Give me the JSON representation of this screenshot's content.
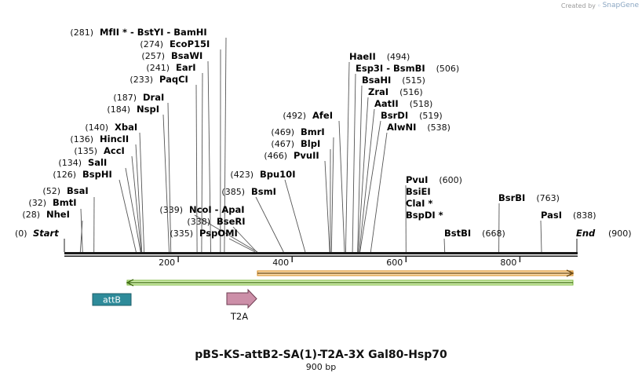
{
  "credit": {
    "prefix": "Created by",
    "brand": "SnapGene"
  },
  "sequence": {
    "name": "pBS-KS-attB2-SA(1)-T2A-3X Gal80-Hsp70",
    "length_label": "900 bp",
    "length": 900
  },
  "ends": {
    "start": {
      "label": "Start",
      "pos": "(0)"
    },
    "end": {
      "label": "End",
      "pos": "(900)"
    }
  },
  "ruler_ticks": [
    "200",
    "400",
    "600",
    "800"
  ],
  "sites": [
    {
      "name": "NheI",
      "pos": "(28)"
    },
    {
      "name": "BmtI",
      "pos": "(32)"
    },
    {
      "name": "BsaI",
      "pos": "(52)"
    },
    {
      "name": "BspHI",
      "pos": "(126)"
    },
    {
      "name": "SalI",
      "pos": "(134)"
    },
    {
      "name": "AccI",
      "pos": "(135)"
    },
    {
      "name": "HincII",
      "pos": "(136)"
    },
    {
      "name": "XbaI",
      "pos": "(140)"
    },
    {
      "name": "NspI",
      "pos": "(184)"
    },
    {
      "name": "DraI",
      "pos": "(187)"
    },
    {
      "name": "PaqCI",
      "pos": "(233)"
    },
    {
      "name": "EarI",
      "pos": "(241)"
    },
    {
      "name": "BsaWI",
      "pos": "(257)"
    },
    {
      "name": "EcoP15I",
      "pos": "(274)"
    },
    {
      "name": "MfII * - BstYI - BamHI",
      "pos": "(281)"
    },
    {
      "name": "PspOMI",
      "pos": "(335)"
    },
    {
      "name": "BseRI",
      "pos": "(338)"
    },
    {
      "name": "NcoI - ApaI",
      "pos": "(339)"
    },
    {
      "name": "BsmI",
      "pos": "(385)"
    },
    {
      "name": "Bpu10I",
      "pos": "(423)"
    },
    {
      "name": "PvuII",
      "pos": "(466)"
    },
    {
      "name": "BlpI",
      "pos": "(467)"
    },
    {
      "name": "BmrI",
      "pos": "(469)"
    },
    {
      "name": "AfeI",
      "pos": "(492)"
    },
    {
      "name": "HaeII",
      "pos": "(494)"
    },
    {
      "name": "Esp3I - BsmBI",
      "pos": "(506)"
    },
    {
      "name": "BsaHI",
      "pos": "(515)"
    },
    {
      "name": "ZraI",
      "pos": "(516)"
    },
    {
      "name": "AatII",
      "pos": "(518)"
    },
    {
      "name": "BsrDI",
      "pos": "(519)"
    },
    {
      "name": "AlwNI",
      "pos": "(538)"
    },
    {
      "name": "PvuI",
      "pos": "(600)"
    },
    {
      "name": "BsiEI",
      "pos": ""
    },
    {
      "name": "ClaI *",
      "pos": ""
    },
    {
      "name": "BspDI *",
      "pos": ""
    },
    {
      "name": "BstBI",
      "pos": "(668)"
    },
    {
      "name": "BsrBI",
      "pos": "(763)"
    },
    {
      "name": "PasI",
      "pos": "(838)"
    }
  ],
  "features": [
    {
      "name": "attB",
      "color": "#2e8b9a"
    },
    {
      "name": "T2A",
      "color": "#cc8fa8"
    }
  ],
  "orf_colors": {
    "forward": "#f5a623",
    "reverse": "#7ed321"
  }
}
